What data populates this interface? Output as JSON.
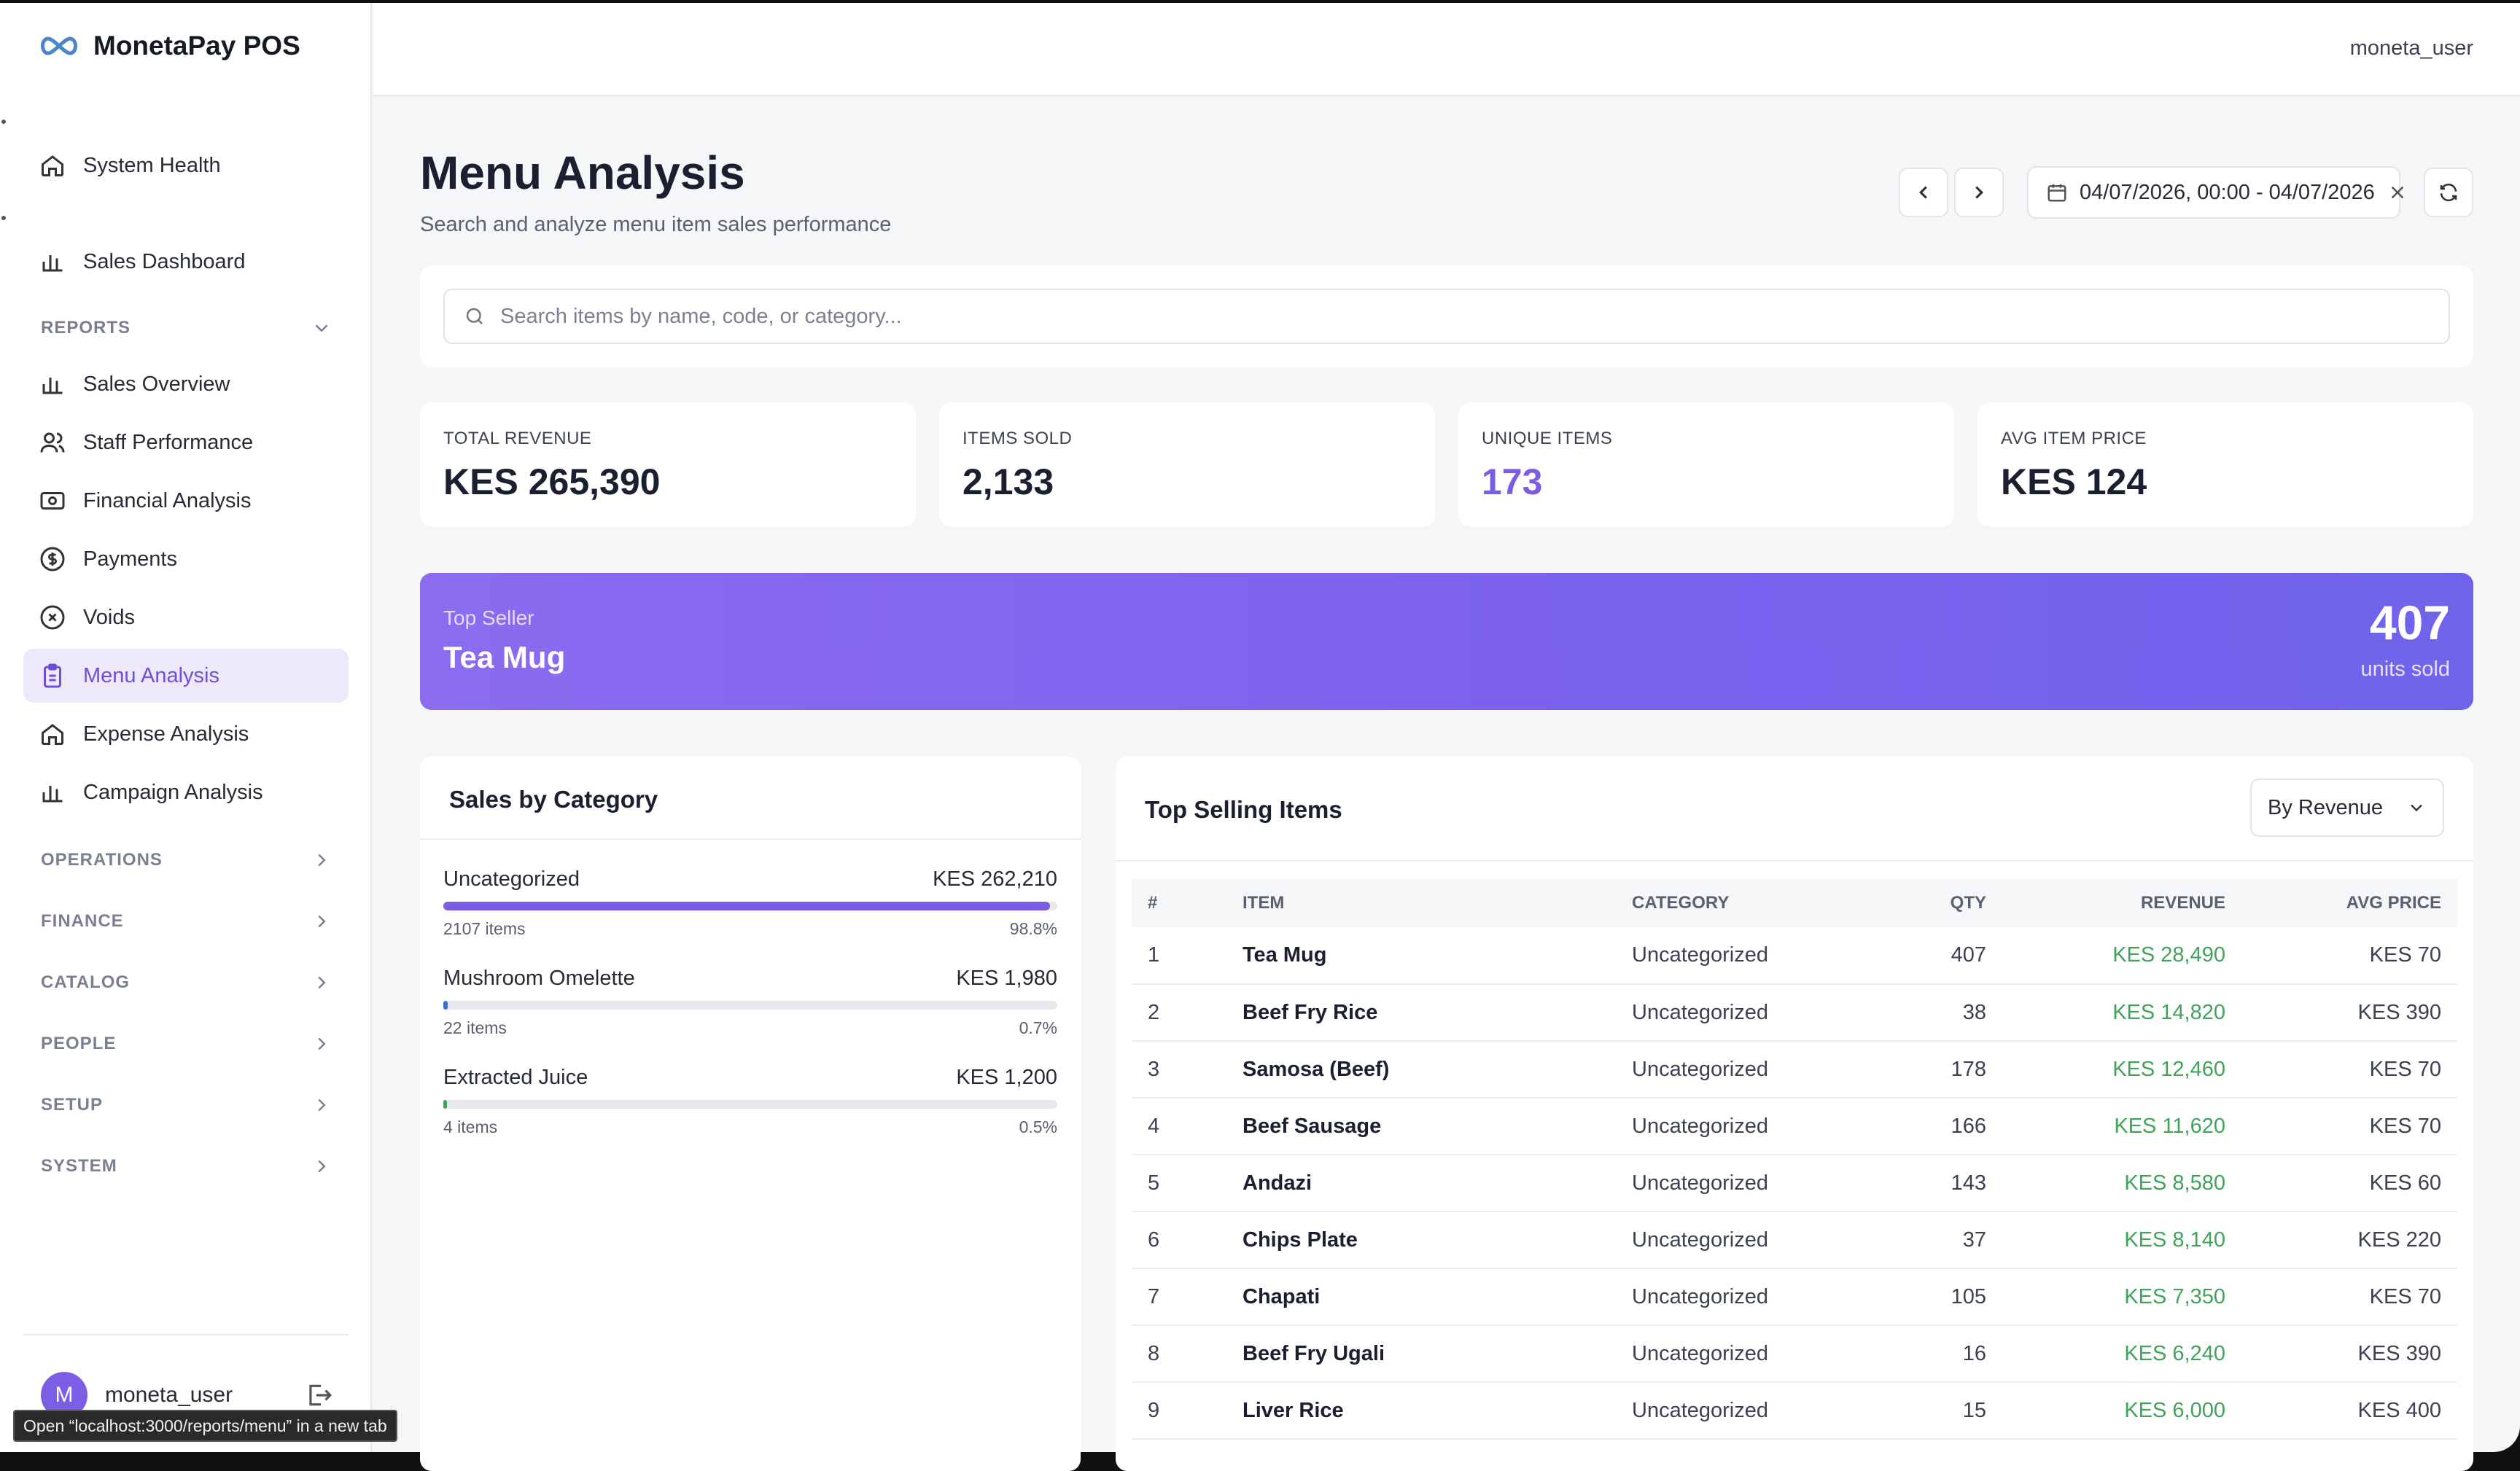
{
  "brand": {
    "name": "MonetaPay POS"
  },
  "header": {
    "user": "moneta_user"
  },
  "sidebar": {
    "top_items": [
      {
        "label": "System Health",
        "icon": "home-icon"
      },
      {
        "label": "Sales Dashboard",
        "icon": "bar-chart-icon"
      }
    ],
    "reports": {
      "label": "REPORTS",
      "items": [
        {
          "label": "Sales Overview",
          "icon": "bar-chart-icon"
        },
        {
          "label": "Staff Performance",
          "icon": "users-icon"
        },
        {
          "label": "Financial Analysis",
          "icon": "banknote-icon"
        },
        {
          "label": "Payments",
          "icon": "dollar-circle-icon"
        },
        {
          "label": "Voids",
          "icon": "x-circle-icon"
        },
        {
          "label": "Menu Analysis",
          "icon": "clipboard-icon",
          "active": true
        },
        {
          "label": "Expense Analysis",
          "icon": "home-icon"
        },
        {
          "label": "Campaign Analysis",
          "icon": "bar-chart-icon"
        }
      ]
    },
    "sections": [
      "OPERATIONS",
      "FINANCE",
      "CATALOG",
      "PEOPLE",
      "SETUP",
      "SYSTEM"
    ],
    "user": {
      "initial": "M",
      "name": "moneta_user"
    }
  },
  "tooltip": "Open “localhost:3000/reports/menu” in a new tab",
  "page": {
    "title": "Menu Analysis",
    "subtitle": "Search and analyze menu item sales performance",
    "date_range": "04/07/2026, 00:00 - 04/07/2026",
    "search_placeholder": "Search items by name, code, or category..."
  },
  "stats": [
    {
      "label": "TOTAL REVENUE",
      "value": "KES 265,390"
    },
    {
      "label": "ITEMS SOLD",
      "value": "2,133"
    },
    {
      "label": "UNIQUE ITEMS",
      "value": "173"
    },
    {
      "label": "AVG ITEM PRICE",
      "value": "KES 124"
    }
  ],
  "top_seller": {
    "label": "Top Seller",
    "name": "Tea Mug",
    "units": "407",
    "units_label": "units sold"
  },
  "categories": {
    "title": "Sales by Category",
    "rows": [
      {
        "name": "Uncategorized",
        "revenue": "KES 262,210",
        "items": "2107 items",
        "pct_label": "98.8%",
        "pct": 98.8,
        "color": "#7b5de3"
      },
      {
        "name": "Mushroom Omelette",
        "revenue": "KES 1,980",
        "items": "22 items",
        "pct_label": "0.7%",
        "pct": 0.7,
        "color": "#3b6fd8"
      },
      {
        "name": "Extracted Juice",
        "revenue": "KES 1,200",
        "items": "4 items",
        "pct_label": "0.5%",
        "pct": 0.5,
        "color": "#3fa35a"
      }
    ]
  },
  "top_items": {
    "title": "Top Selling Items",
    "sort_label": "By Revenue",
    "columns": [
      "#",
      "ITEM",
      "CATEGORY",
      "QTY",
      "REVENUE",
      "AVG PRICE"
    ],
    "rows": [
      [
        "1",
        "Tea Mug",
        "Uncategorized",
        "407",
        "KES 28,490",
        "KES 70"
      ],
      [
        "2",
        "Beef Fry Rice",
        "Uncategorized",
        "38",
        "KES 14,820",
        "KES 390"
      ],
      [
        "3",
        "Samosa (Beef)",
        "Uncategorized",
        "178",
        "KES 12,460",
        "KES 70"
      ],
      [
        "4",
        "Beef Sausage",
        "Uncategorized",
        "166",
        "KES 11,620",
        "KES 70"
      ],
      [
        "5",
        "Andazi",
        "Uncategorized",
        "143",
        "KES 8,580",
        "KES 60"
      ],
      [
        "6",
        "Chips Plate",
        "Uncategorized",
        "37",
        "KES 8,140",
        "KES 220"
      ],
      [
        "7",
        "Chapati",
        "Uncategorized",
        "105",
        "KES 7,350",
        "KES 70"
      ],
      [
        "8",
        "Beef Fry Ugali",
        "Uncategorized",
        "16",
        "KES 6,240",
        "KES 390"
      ],
      [
        "9",
        "Liver Rice",
        "Uncategorized",
        "15",
        "KES 6,000",
        "KES 400"
      ]
    ]
  },
  "colors": {
    "accent": "#7b5de3",
    "revenue_green": "#3fa35a"
  }
}
